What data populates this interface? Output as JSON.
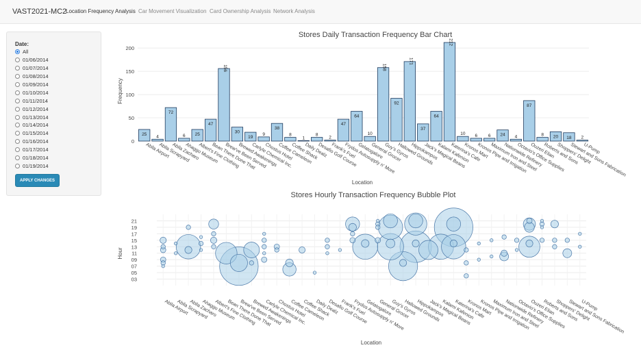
{
  "navbar": {
    "brand": "VAST2021-MC2",
    "tabs": [
      {
        "label": "Location Frequency Analysis",
        "active": true
      },
      {
        "label": "Car Movement Visualization",
        "active": false
      },
      {
        "label": "Card Ownership Analysis",
        "active": false
      },
      {
        "label": "Network Analysis",
        "active": false
      }
    ]
  },
  "sidebar": {
    "date_label": "Date:",
    "selected": "All",
    "options": [
      "All",
      "01/06/2014",
      "01/07/2014",
      "01/08/2014",
      "01/09/2014",
      "01/10/2014",
      "01/11/2014",
      "01/12/2014",
      "01/13/2014",
      "01/14/2014",
      "01/15/2014",
      "01/16/2014",
      "01/17/2014",
      "01/18/2014",
      "01/19/2014"
    ],
    "apply_label": "APPLY CHANGES"
  },
  "colors": {
    "bar_fill": "#a9cfe8",
    "bar_stroke": "#1f3b5e",
    "bubble_fill": "#a9cfe8",
    "bubble_stroke": "#4a78a8",
    "accent": "#2a8ab6"
  },
  "chart_data": [
    {
      "type": "bar",
      "title": "Stores Daily Transaction Frequency Bar Chart",
      "xlabel": "Location",
      "ylabel": "Frequency",
      "ylim": [
        0,
        215
      ],
      "yticks": [
        0,
        50,
        100,
        150,
        200
      ],
      "categories": [
        "Abila Airport",
        "Abila Scrapyard",
        "Abila Zacharo",
        "Ahaggo Museum",
        "Albert's Fine Clothing",
        "Bean There Done That",
        "Brew've Been Served",
        "Brewed Awakenings",
        "Carlyle Chemical Inc.",
        "Chostus Hotel",
        "Coffee Cameleon",
        "Coffee Shack",
        "Daily Dealz",
        "Desafio Golf Course",
        "Frank's Fuel",
        "Frydos Autosupply n' More",
        "Gelatogalore",
        "General Grocer",
        "Guy's Gyros",
        "Hallowed Grounds",
        "Hippokampos",
        "Jack's Magical Beans",
        "Kalami Kafenion",
        "Katerina's Cafe",
        "Kronos Mart",
        "Kronos Pipe and Irrigation",
        "Maximum Iron and Steel",
        "Nationwide Refinery",
        "Octavio's Office Supplies",
        "Ouzeri Elian",
        "Roberts and Sons",
        "Shoppers' Delight",
        "Stewart and Sons Fabrication",
        "U-Pump"
      ],
      "values": [
        25,
        4,
        72,
        6,
        25,
        47,
        156,
        30,
        19,
        9,
        38,
        8,
        1,
        8,
        2,
        47,
        64,
        10,
        158,
        92,
        171,
        37,
        64,
        212,
        10,
        6,
        6,
        24,
        4,
        87,
        8,
        20,
        18,
        2
      ]
    },
    {
      "type": "scatter",
      "title": "Stores Hourly Transaction Frequency Bubble Plot",
      "xlabel": "Location",
      "ylabel": "Hour",
      "yticks": [
        "03",
        "05",
        "07",
        "09",
        "11",
        "13",
        "15",
        "17",
        "19",
        "21"
      ],
      "ylim": [
        1,
        23
      ],
      "categories": [
        "Abila Airport",
        "Abila Scrapyard",
        "Abila Zacharo",
        "Ahaggo Museum",
        "Albert's Fine Clothing",
        "Bean There Done That",
        "Brew've Been Served",
        "Brewed Awakenings",
        "Carlyle Chemical Inc.",
        "Chostus Hotel",
        "Coffee Cameleon",
        "Coffee Shack",
        "Daily Dealz",
        "Desafio Golf Course",
        "Frank's Fuel",
        "Frydos Autosupply n' More",
        "Gelatogalore",
        "General Grocer",
        "Guy's Gyros",
        "Hallowed Grounds",
        "Hippokampos",
        "Jack's Magical Beans",
        "Kalami Kafenion",
        "Katerina's Cafe",
        "Kronos Mart",
        "Kronos Pipe and Irrigation",
        "Maximum Iron and Steel",
        "Nationwide Refinery",
        "Octavio's Office Supplies",
        "Ouzeri Elian",
        "Roberts and Sons",
        "Shoppers' Delight",
        "Stewart and Sons Fabrication",
        "U-Pump"
      ],
      "points": [
        {
          "cat": 0,
          "hour": 15,
          "size": 4
        },
        {
          "cat": 0,
          "hour": 12,
          "size": 3
        },
        {
          "cat": 0,
          "hour": 9,
          "size": 3
        },
        {
          "cat": 0,
          "hour": 8,
          "size": 2
        },
        {
          "cat": 0,
          "hour": 7,
          "size": 1
        },
        {
          "cat": 0,
          "hour": 13,
          "size": 2
        },
        {
          "cat": 1,
          "hour": 14,
          "size": 1
        },
        {
          "cat": 1,
          "hour": 11,
          "size": 1
        },
        {
          "cat": 2,
          "hour": 13,
          "size": 60
        },
        {
          "cat": 2,
          "hour": 19,
          "size": 2
        },
        {
          "cat": 2,
          "hour": 12,
          "size": 5
        },
        {
          "cat": 3,
          "hour": 14,
          "size": 2
        },
        {
          "cat": 3,
          "hour": 16,
          "size": 1
        },
        {
          "cat": 3,
          "hour": 12,
          "size": 1
        },
        {
          "cat": 4,
          "hour": 20,
          "size": 10
        },
        {
          "cat": 4,
          "hour": 15,
          "size": 4
        },
        {
          "cat": 4,
          "hour": 17,
          "size": 2
        },
        {
          "cat": 4,
          "hour": 13,
          "size": 2
        },
        {
          "cat": 5,
          "hour": 11,
          "size": 47
        },
        {
          "cat": 6,
          "hour": 7,
          "size": 150
        },
        {
          "cat": 6,
          "hour": 8,
          "size": 30
        },
        {
          "cat": 7,
          "hour": 12,
          "size": 25
        },
        {
          "cat": 7,
          "hour": 8,
          "size": 2
        },
        {
          "cat": 8,
          "hour": 13,
          "size": 2
        },
        {
          "cat": 8,
          "hour": 15,
          "size": 2
        },
        {
          "cat": 8,
          "hour": 17,
          "size": 1
        },
        {
          "cat": 8,
          "hour": 11,
          "size": 1
        },
        {
          "cat": 8,
          "hour": 9,
          "size": 3
        },
        {
          "cat": 9,
          "hour": 13,
          "size": 3
        },
        {
          "cat": 9,
          "hour": 12,
          "size": 2
        },
        {
          "cat": 10,
          "hour": 6,
          "size": 18
        },
        {
          "cat": 10,
          "hour": 8,
          "size": 6
        },
        {
          "cat": 11,
          "hour": 12,
          "size": 4
        },
        {
          "cat": 12,
          "hour": 5,
          "size": 1
        },
        {
          "cat": 13,
          "hour": 15,
          "size": 2
        },
        {
          "cat": 13,
          "hour": 13,
          "size": 2
        },
        {
          "cat": 13,
          "hour": 11,
          "size": 1
        },
        {
          "cat": 14,
          "hour": 12,
          "size": 1
        },
        {
          "cat": 15,
          "hour": 20,
          "size": 20
        },
        {
          "cat": 15,
          "hour": 19,
          "size": 6
        },
        {
          "cat": 15,
          "hour": 15,
          "size": 3
        },
        {
          "cat": 15,
          "hour": 17,
          "size": 2
        },
        {
          "cat": 16,
          "hour": 13,
          "size": 64
        },
        {
          "cat": 16,
          "hour": 14,
          "size": 6
        },
        {
          "cat": 17,
          "hour": 20,
          "size": 2
        },
        {
          "cat": 17,
          "hour": 19,
          "size": 2
        },
        {
          "cat": 17,
          "hour": 15,
          "size": 3
        },
        {
          "cat": 17,
          "hour": 21,
          "size": 1
        },
        {
          "cat": 18,
          "hour": 19,
          "size": 60
        },
        {
          "cat": 18,
          "hour": 13,
          "size": 70
        },
        {
          "cat": 18,
          "hour": 21,
          "size": 20
        },
        {
          "cat": 18,
          "hour": 14,
          "size": 8
        },
        {
          "cat": 19,
          "hour": 7,
          "size": 85
        },
        {
          "cat": 19,
          "hour": 8,
          "size": 5
        },
        {
          "cat": 20,
          "hour": 20,
          "size": 50
        },
        {
          "cat": 20,
          "hour": 13,
          "size": 100
        },
        {
          "cat": 20,
          "hour": 21,
          "size": 20
        },
        {
          "cat": 20,
          "hour": 14,
          "size": 5
        },
        {
          "cat": 21,
          "hour": 12,
          "size": 37
        },
        {
          "cat": 22,
          "hour": 13,
          "size": 64
        },
        {
          "cat": 23,
          "hour": 19,
          "size": 150
        },
        {
          "cat": 23,
          "hour": 13,
          "size": 60
        },
        {
          "cat": 23,
          "hour": 20,
          "size": 20
        },
        {
          "cat": 23,
          "hour": 14,
          "size": 5
        },
        {
          "cat": 24,
          "hour": 8,
          "size": 2
        },
        {
          "cat": 24,
          "hour": 4,
          "size": 2
        },
        {
          "cat": 24,
          "hour": 12,
          "size": 2
        },
        {
          "cat": 25,
          "hour": 14,
          "size": 1
        },
        {
          "cat": 25,
          "hour": 9,
          "size": 1
        },
        {
          "cat": 26,
          "hour": 15,
          "size": 1
        },
        {
          "cat": 26,
          "hour": 10,
          "size": 1
        },
        {
          "cat": 27,
          "hour": 11,
          "size": 4
        },
        {
          "cat": 27,
          "hour": 10,
          "size": 8
        },
        {
          "cat": 27,
          "hour": 16,
          "size": 2
        },
        {
          "cat": 28,
          "hour": 15,
          "size": 2
        },
        {
          "cat": 28,
          "hour": 12,
          "size": 1
        },
        {
          "cat": 29,
          "hour": 13,
          "size": 45
        },
        {
          "cat": 29,
          "hour": 20,
          "size": 15
        },
        {
          "cat": 29,
          "hour": 19,
          "size": 10
        },
        {
          "cat": 29,
          "hour": 21,
          "size": 3
        },
        {
          "cat": 29,
          "hour": 14,
          "size": 5
        },
        {
          "cat": 30,
          "hour": 15,
          "size": 2
        },
        {
          "cat": 30,
          "hour": 20,
          "size": 2
        },
        {
          "cat": 30,
          "hour": 19,
          "size": 1
        },
        {
          "cat": 30,
          "hour": 21,
          "size": 1
        },
        {
          "cat": 31,
          "hour": 20,
          "size": 6
        },
        {
          "cat": 31,
          "hour": 15,
          "size": 2
        },
        {
          "cat": 31,
          "hour": 13,
          "size": 2
        },
        {
          "cat": 32,
          "hour": 11,
          "size": 8
        },
        {
          "cat": 32,
          "hour": 15,
          "size": 2
        },
        {
          "cat": 33,
          "hour": 17,
          "size": 1
        },
        {
          "cat": 33,
          "hour": 13,
          "size": 1
        }
      ]
    }
  ]
}
